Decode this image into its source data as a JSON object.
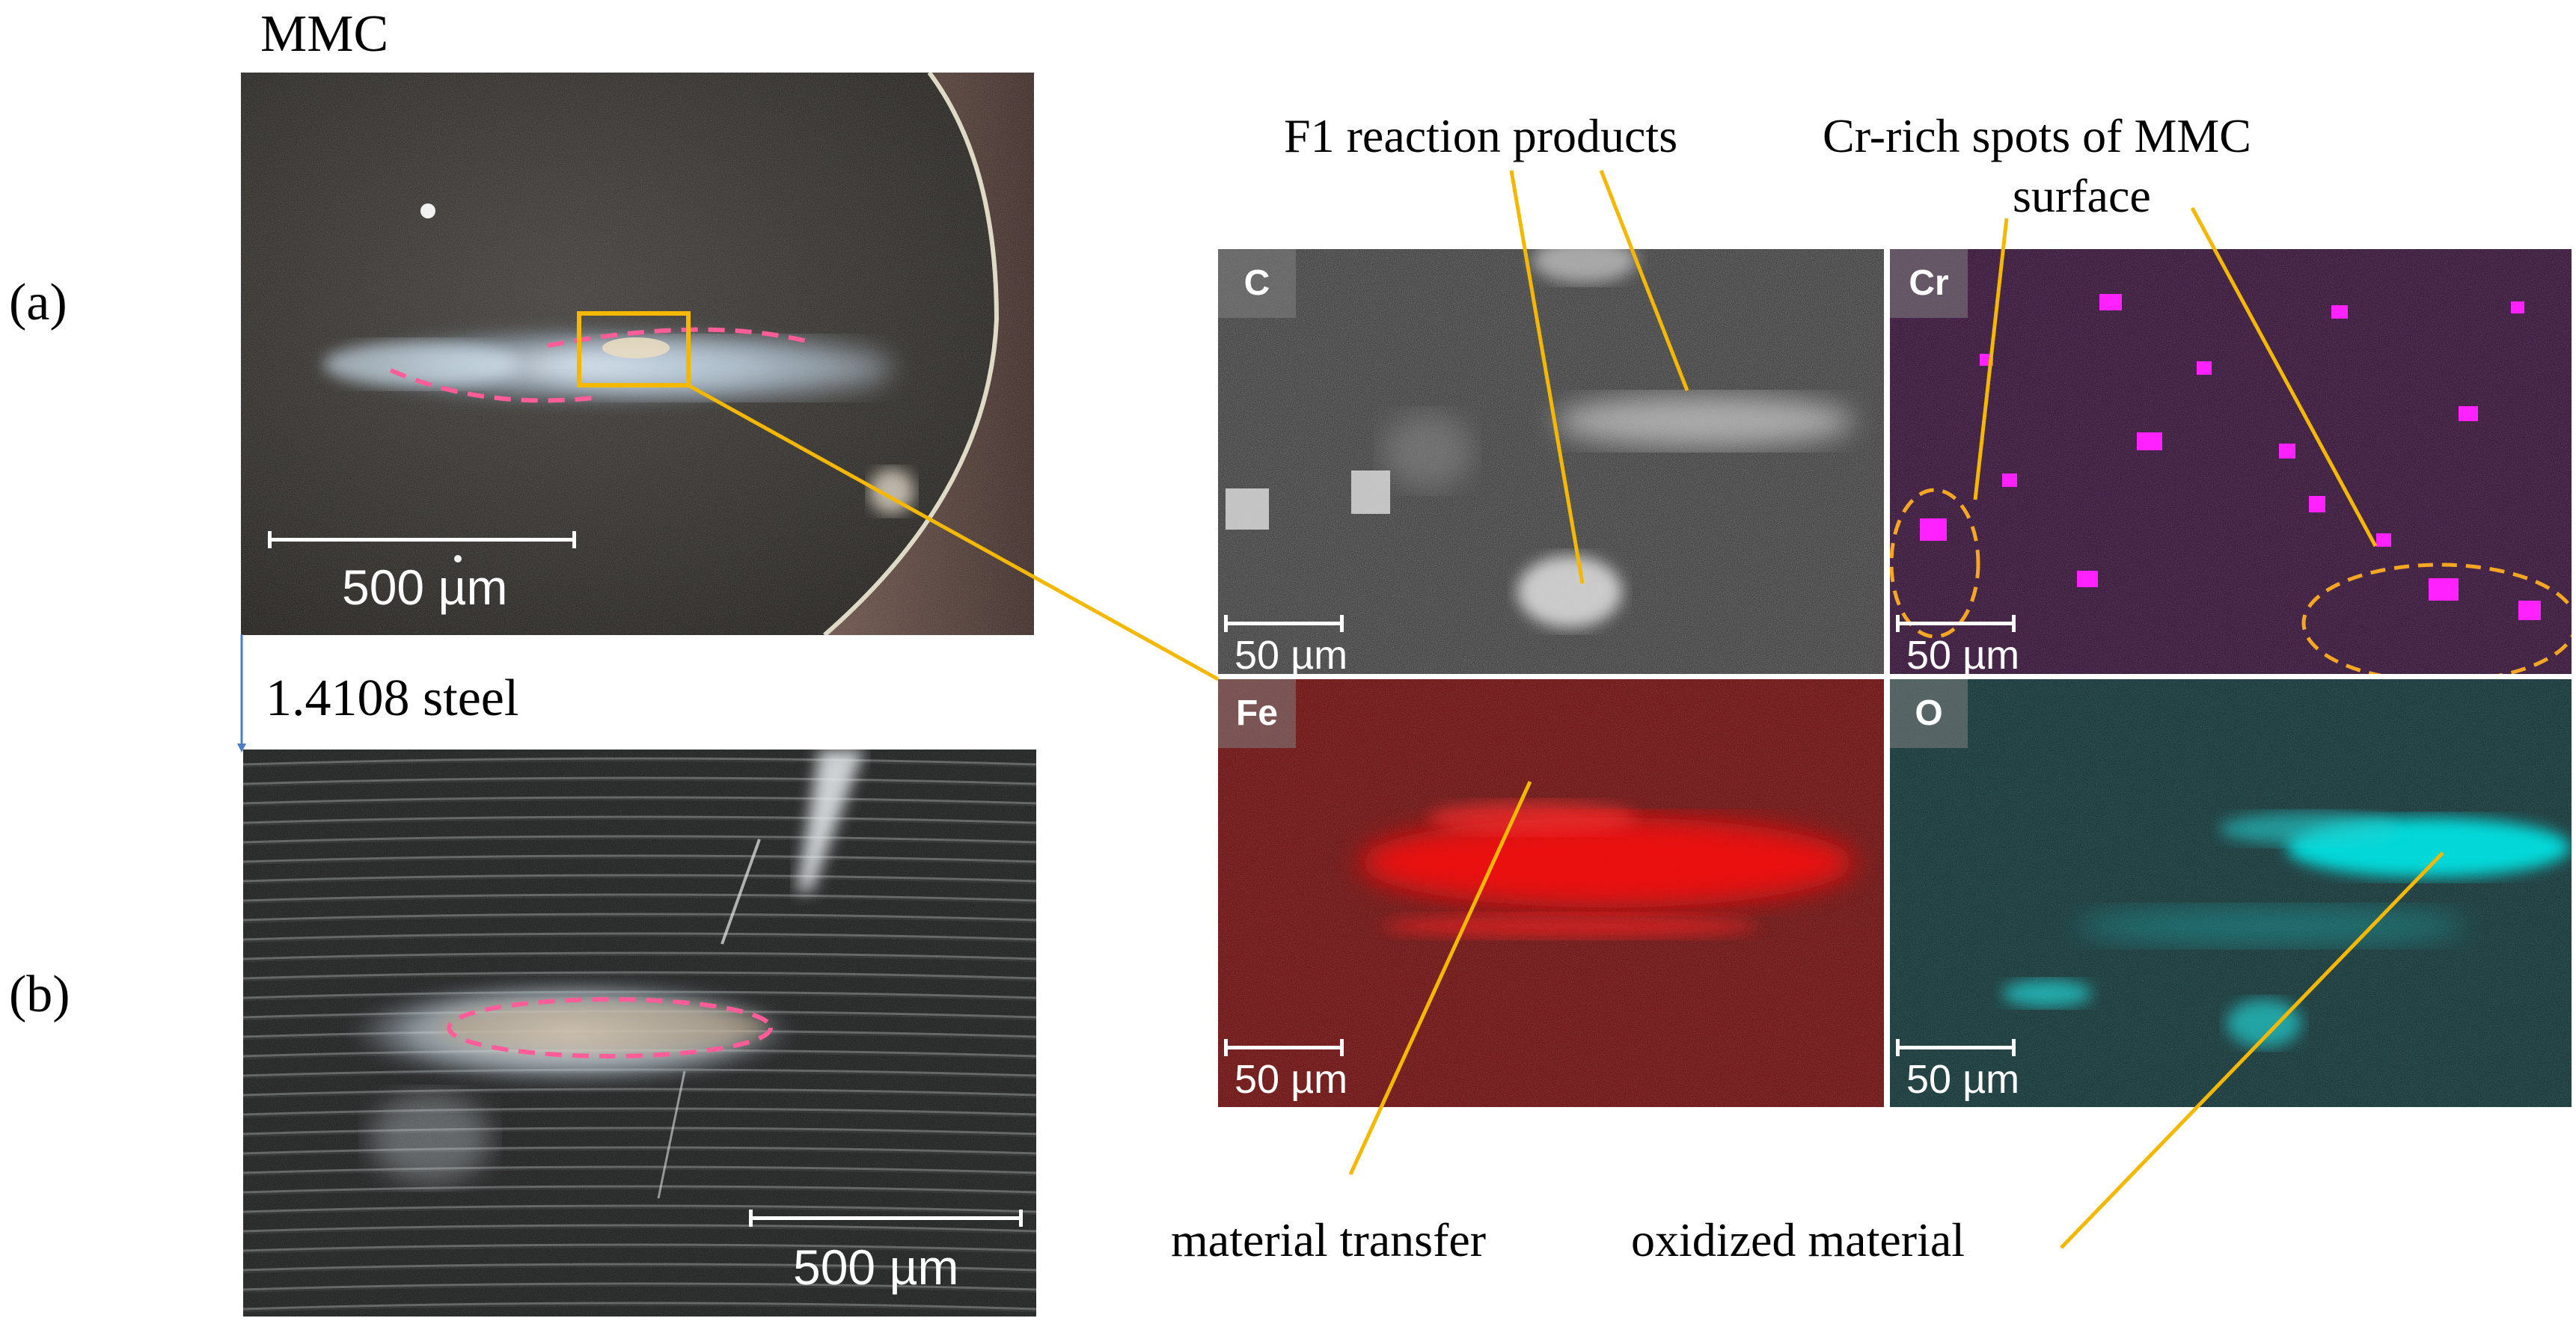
{
  "figure": {
    "panel_a": {
      "letter": "(a)",
      "heading": "MMC",
      "scale_label": "500 µm"
    },
    "panel_b": {
      "letter": "(b)",
      "heading": "1.4108 steel",
      "scale_label": "500 µm"
    },
    "maps": [
      {
        "element": "C",
        "color": "#9a9a9a",
        "scale_label": "50 µm"
      },
      {
        "element": "Cr",
        "color": "#ff00ff",
        "scale_label": "50 µm"
      },
      {
        "element": "Fe",
        "color": "#ff1010",
        "scale_label": "50 µm"
      },
      {
        "element": "O",
        "color": "#00e0e0",
        "scale_label": "50 µm"
      }
    ],
    "annotations": {
      "f1_reaction_products": "F1 reaction products",
      "cr_rich_spots_line1": "Cr-rich spots of MMC",
      "cr_rich_spots_line2": "surface",
      "material_transfer": "material transfer",
      "oxidized_material": "oxidized material"
    },
    "colors": {
      "leader_line": "#f5b800",
      "highlight_box": "#f5b800",
      "dashed_outline_pink": "#ff5c9a",
      "dashed_outline_orange": "#f5a623"
    }
  }
}
